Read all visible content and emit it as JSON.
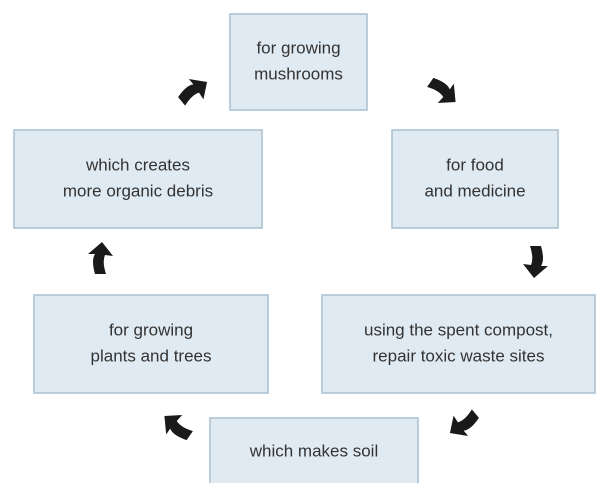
{
  "nodes": [
    {
      "lines": [
        "for growing",
        "mushrooms"
      ]
    },
    {
      "lines": [
        "for food",
        "and medicine"
      ]
    },
    {
      "lines": [
        "using the spent compost,",
        "repair toxic waste sites"
      ]
    },
    {
      "lines": [
        "which makes soil"
      ]
    },
    {
      "lines": [
        "for growing",
        "plants and trees"
      ]
    },
    {
      "lines": [
        "which creates",
        "more organic debris"
      ]
    }
  ]
}
